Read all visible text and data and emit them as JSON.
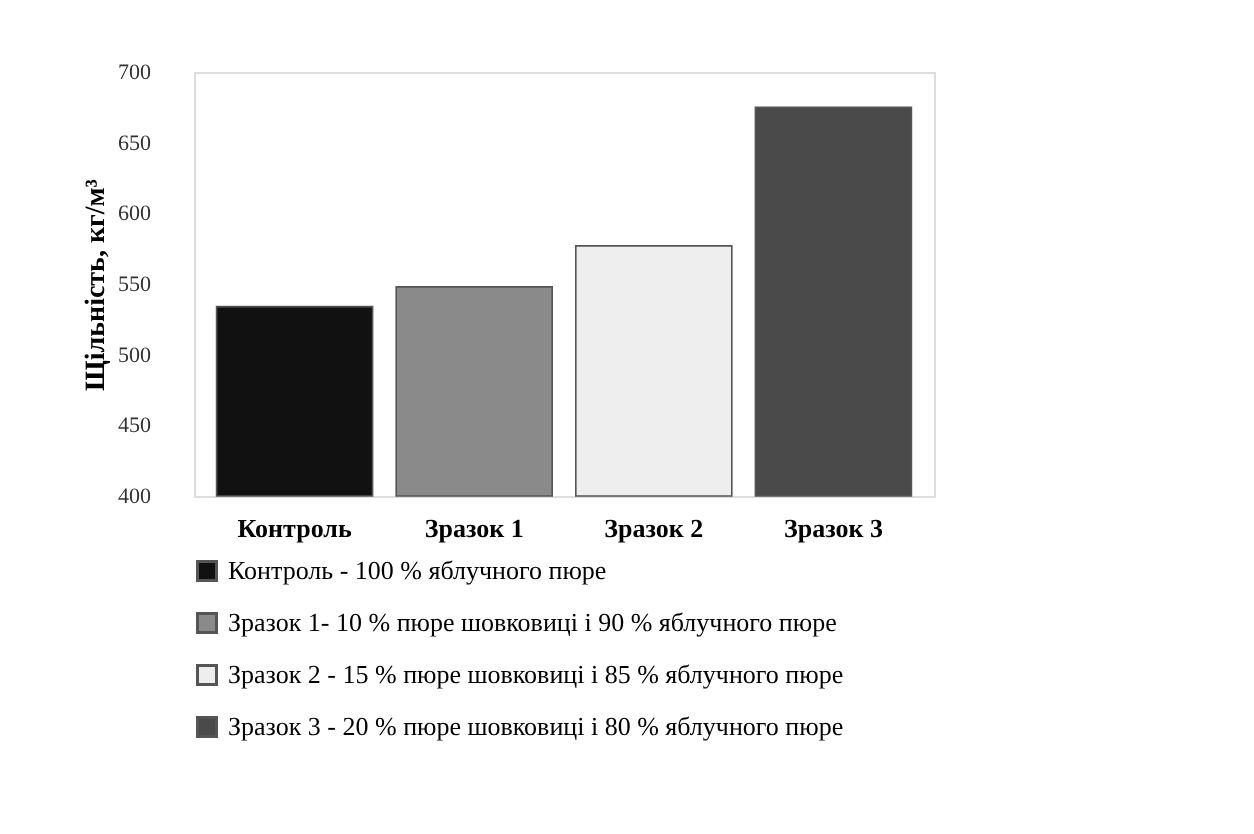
{
  "chart_data": {
    "type": "bar",
    "ylabel": "Щільність, кг/м³",
    "categories": [
      "Контроль",
      "Зразок 1",
      "Зразок 2",
      "Зразок 3"
    ],
    "series": [
      {
        "name": "Контроль - 100 % яблучного пюре",
        "color": "#111111",
        "values": [
          534,
          null,
          null,
          null
        ]
      },
      {
        "name": "Зразок 1- 10 % пюре шовковиці і 90 % яблучного пюре",
        "color": "#8a8a8a",
        "values": [
          null,
          548,
          null,
          null
        ]
      },
      {
        "name": "Зразок 2 - 15 % пюре шовковиці і 85 % яблучного пюре",
        "color": "#eeeeee",
        "values": [
          null,
          null,
          577,
          null
        ]
      },
      {
        "name": "Зразок 3 - 20 % пюре шовковиці і 80 % яблучного пюре",
        "color": "#4a4a4a",
        "values": [
          null,
          null,
          null,
          675
        ]
      }
    ],
    "ylim": [
      400,
      700
    ],
    "yticks": [
      400,
      450,
      500,
      550,
      600,
      650,
      700
    ],
    "grid": false,
    "legend": "bottom"
  }
}
